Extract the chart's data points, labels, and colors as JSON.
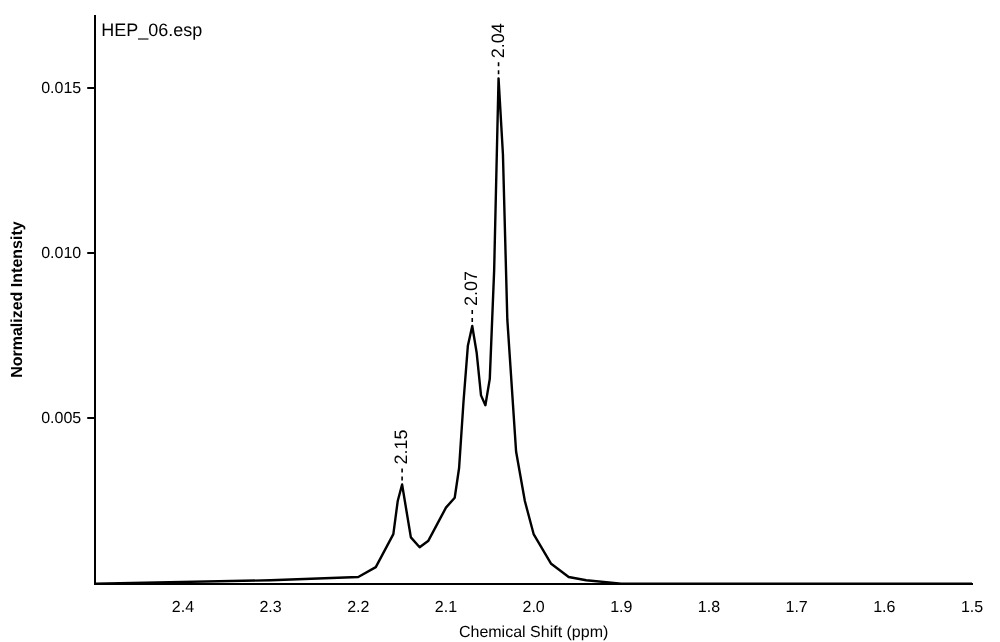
{
  "chart_data": {
    "type": "line",
    "title": "HEP_06.esp",
    "xlabel": "Chemical Shift (ppm)",
    "ylabel": "Normalized Intensity",
    "x": [
      2.5,
      2.3,
      2.2,
      2.18,
      2.16,
      2.155,
      2.15,
      2.145,
      2.14,
      2.13,
      2.12,
      2.11,
      2.1,
      2.09,
      2.085,
      2.08,
      2.075,
      2.07,
      2.065,
      2.06,
      2.055,
      2.05,
      2.045,
      2.04,
      2.035,
      2.03,
      2.02,
      2.01,
      2.0,
      1.98,
      1.96,
      1.94,
      1.9,
      1.5
    ],
    "series": [
      {
        "color": "#000000",
        "values": [
          0,
          0.0001,
          0.0002,
          0.0005,
          0.0015,
          0.0025,
          0.003,
          0.0022,
          0.0014,
          0.0011,
          0.0013,
          0.0018,
          0.0023,
          0.0026,
          0.0035,
          0.0055,
          0.0072,
          0.0078,
          0.007,
          0.0057,
          0.0054,
          0.0062,
          0.0095,
          0.0153,
          0.013,
          0.008,
          0.004,
          0.0025,
          0.0015,
          0.0006,
          0.0002,
          0.0001,
          0,
          0
        ]
      }
    ],
    "xlim": [
      2.5,
      1.5
    ],
    "xticks": [
      2.4,
      2.3,
      2.2,
      2.1,
      {
        "value": 2.0,
        "label": "2.0"
      },
      1.9,
      1.8,
      1.7,
      1.6,
      1.5
    ],
    "ylim": [
      0,
      0.0172
    ],
    "yticks": [
      {
        "value": 0.005,
        "label": "0.005"
      },
      {
        "value": 0.01,
        "label": "0.010"
      },
      {
        "value": 0.015,
        "label": "0.015"
      }
    ],
    "annotations": [
      {
        "text": "2.15",
        "x": 2.15,
        "y": 0.003
      },
      {
        "text": "2.07",
        "x": 2.07,
        "y": 0.0078
      },
      {
        "text": "2.04",
        "x": 2.04,
        "y": 0.0153
      }
    ],
    "grid": false,
    "legend": false,
    "marker": "none",
    "line_style": "solid"
  }
}
